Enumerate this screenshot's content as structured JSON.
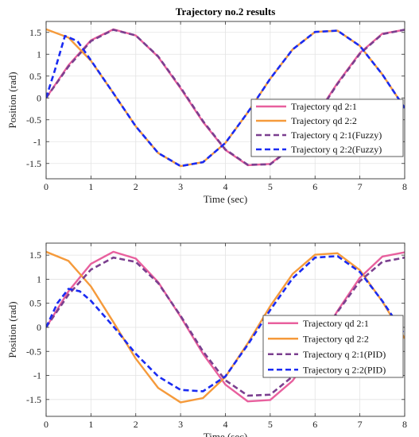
{
  "chart_data": [
    {
      "type": "line",
      "title": "Trajectory no.2 results",
      "xlabel": "Time (sec)",
      "ylabel": "Position (rad)",
      "xlim": [
        0,
        8
      ],
      "ylim": [
        -1.85,
        1.75
      ],
      "xticks": [
        0,
        1,
        2,
        3,
        4,
        5,
        6,
        7,
        8
      ],
      "yticks": [
        -1.5,
        -1,
        -0.5,
        0,
        0.5,
        1,
        1.5
      ],
      "grid": true,
      "legend_position": "right",
      "series": [
        {
          "name": "Trajectory qd 2:1",
          "color": "#e8609e",
          "style": "solid",
          "x": [
            0,
            0.5,
            1,
            1.5,
            2,
            2.5,
            3,
            3.5,
            4,
            4.5,
            5,
            5.5,
            6,
            6.5,
            7,
            7.5,
            8
          ],
          "y": [
            0,
            0.75,
            1.32,
            1.57,
            1.43,
            0.94,
            0.22,
            -0.55,
            -1.19,
            -1.54,
            -1.51,
            -1.11,
            -0.44,
            0.34,
            1.03,
            1.47,
            1.56
          ]
        },
        {
          "name": "Trajectory qd 2:2",
          "color": "#f59a3b",
          "style": "solid",
          "x": [
            0,
            0.5,
            1,
            1.5,
            2,
            2.5,
            3,
            3.5,
            4,
            4.5,
            5,
            5.5,
            6,
            6.5,
            7,
            7.5,
            8
          ],
          "y": [
            1.57,
            1.38,
            0.85,
            0.11,
            -0.65,
            -1.26,
            -1.56,
            -1.47,
            -1.03,
            -0.33,
            0.44,
            1.11,
            1.51,
            1.54,
            1.19,
            0.54,
            -0.23
          ]
        },
        {
          "name": "Trajectory q 2:1(Fuzzy)",
          "color": "#7b3f8f",
          "style": "dashed",
          "x": [
            0,
            0.5,
            1,
            1.5,
            2,
            2.5,
            3,
            3.5,
            4,
            4.5,
            5,
            5.5,
            6,
            6.5,
            7,
            7.5,
            8
          ],
          "y": [
            0,
            0.72,
            1.3,
            1.56,
            1.43,
            0.95,
            0.24,
            -0.53,
            -1.18,
            -1.53,
            -1.52,
            -1.12,
            -0.46,
            0.32,
            1.01,
            1.46,
            1.56
          ]
        },
        {
          "name": "Trajectory q 2:2(Fuzzy)",
          "color": "#1a2bf2",
          "style": "dashed",
          "x": [
            0,
            0.2,
            0.42,
            0.7,
            1,
            1.5,
            2,
            2.5,
            3,
            3.5,
            4,
            4.5,
            5,
            5.5,
            6,
            6.5,
            7,
            7.5,
            8
          ],
          "y": [
            0,
            0.65,
            1.42,
            1.3,
            0.86,
            0.11,
            -0.65,
            -1.26,
            -1.56,
            -1.47,
            -1.03,
            -0.33,
            0.44,
            1.11,
            1.51,
            1.54,
            1.19,
            0.54,
            -0.23
          ]
        }
      ]
    },
    {
      "type": "line",
      "title": "",
      "xlabel": "Time (sec)",
      "ylabel": "Position (rad)",
      "xlim": [
        0,
        8
      ],
      "ylim": [
        -1.85,
        1.75
      ],
      "xticks": [
        0,
        1,
        2,
        3,
        4,
        5,
        6,
        7,
        8
      ],
      "yticks": [
        -1.5,
        -1,
        -0.5,
        0,
        0.5,
        1,
        1.5
      ],
      "grid": true,
      "legend_position": "bottom-right",
      "series": [
        {
          "name": "Trajectory qd 2:1",
          "color": "#e8609e",
          "style": "solid",
          "x": [
            0,
            0.5,
            1,
            1.5,
            2,
            2.5,
            3,
            3.5,
            4,
            4.5,
            5,
            5.5,
            6,
            6.5,
            7,
            7.5,
            8
          ],
          "y": [
            0,
            0.75,
            1.32,
            1.57,
            1.43,
            0.94,
            0.22,
            -0.55,
            -1.19,
            -1.54,
            -1.51,
            -1.11,
            -0.44,
            0.34,
            1.03,
            1.47,
            1.56
          ]
        },
        {
          "name": "Trajectory qd 2:2",
          "color": "#f59a3b",
          "style": "solid",
          "x": [
            0,
            0.5,
            1,
            1.5,
            2,
            2.5,
            3,
            3.5,
            4,
            4.5,
            5,
            5.5,
            6,
            6.5,
            7,
            7.5,
            8
          ],
          "y": [
            1.57,
            1.38,
            0.85,
            0.11,
            -0.65,
            -1.26,
            -1.56,
            -1.47,
            -1.03,
            -0.33,
            0.44,
            1.11,
            1.51,
            1.54,
            1.19,
            0.54,
            -0.23
          ]
        },
        {
          "name": "Trajectory q 2:1(PID)",
          "color": "#7b3f8f",
          "style": "dashed",
          "x": [
            0,
            0.5,
            1,
            1.5,
            2,
            2.5,
            3,
            3.5,
            4,
            4.5,
            5,
            5.5,
            6,
            6.5,
            7,
            7.5,
            8
          ],
          "y": [
            0,
            0.68,
            1.2,
            1.45,
            1.36,
            0.92,
            0.24,
            -0.5,
            -1.1,
            -1.42,
            -1.4,
            -1.02,
            -0.4,
            0.32,
            0.96,
            1.36,
            1.45
          ]
        },
        {
          "name": "Trajectory q 2:2(PID)",
          "color": "#1a2bf2",
          "style": "dashed",
          "x": [
            0,
            0.25,
            0.5,
            0.75,
            1,
            1.5,
            2,
            2.5,
            3,
            3.5,
            4,
            4.5,
            5,
            5.5,
            6,
            6.5,
            7,
            7.5,
            8
          ],
          "y": [
            0,
            0.5,
            0.8,
            0.75,
            0.55,
            0.02,
            -0.55,
            -1.02,
            -1.3,
            -1.33,
            -1.02,
            -0.36,
            0.36,
            1.02,
            1.45,
            1.48,
            1.15,
            0.55,
            -0.15
          ]
        }
      ]
    }
  ]
}
